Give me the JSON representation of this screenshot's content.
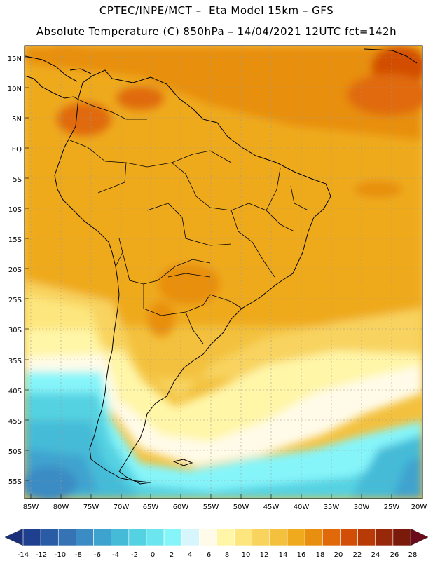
{
  "header": {
    "line1": "CPTEC/INPE/MCT –  Eta Model 15km – GFS",
    "line2": "Absolute Temperature (C) 850hPa – 14/04/2021 12UTC fct=142h"
  },
  "map": {
    "lon_range": [
      -85.5,
      -19.5
    ],
    "lat_range": [
      -58,
      17
    ],
    "lat_labels": [
      "15N",
      "10N",
      "5N",
      "EQ",
      "5S",
      "10S",
      "15S",
      "20S",
      "25S",
      "30S",
      "35S",
      "40S",
      "45S",
      "50S",
      "55S"
    ],
    "lon_labels": [
      "85W",
      "80W",
      "75W",
      "70W",
      "65W",
      "60W",
      "55W",
      "50W",
      "45W",
      "40W",
      "35W",
      "30W",
      "25W",
      "20W"
    ]
  },
  "colorbar": {
    "labels": [
      "-14",
      "-12",
      "-10",
      "-8",
      "-6",
      "-4",
      "-2",
      "0",
      "2",
      "4",
      "6",
      "8",
      "10",
      "12",
      "14",
      "16",
      "18",
      "20",
      "22",
      "24",
      "26",
      "28"
    ],
    "colors": [
      "#1f3f8f",
      "#2a5ca6",
      "#3573b5",
      "#3b8bc4",
      "#3fa3cf",
      "#45bbd8",
      "#55d2e2",
      "#6be6ef",
      "#86f5fa",
      "#d6f6fb",
      "#fffbe8",
      "#fff6a8",
      "#fde67e",
      "#f8d35e",
      "#f3c13e",
      "#efaa1e",
      "#e88f10",
      "#e06a0a",
      "#d24e06",
      "#b83a06",
      "#98280a",
      "#7a1a0a"
    ],
    "min_arrow_color": "#1a2f7a",
    "max_arrow_color": "#6a0a1a"
  }
}
